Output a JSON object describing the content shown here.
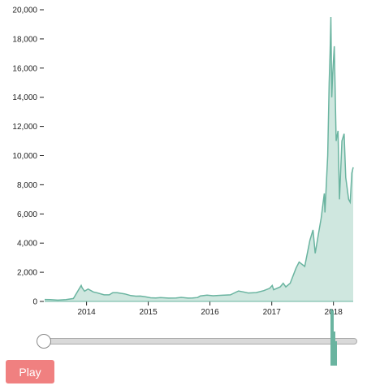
{
  "colors": {
    "series_stroke": "#6ab4a0",
    "series_fill": "#cfe7df",
    "play_button": "#f08080"
  },
  "controls": {
    "play_label": "Play",
    "slider_value": 0
  },
  "chart_data": {
    "type": "area",
    "title": "",
    "xlabel": "",
    "ylabel": "",
    "ylim": [
      0,
      20000
    ],
    "xlim": [
      "2013-04-28",
      "2018-04-28"
    ],
    "y_ticks": [
      0,
      2000,
      4000,
      6000,
      8000,
      10000,
      12000,
      14000,
      16000,
      18000,
      20000
    ],
    "y_tick_labels": [
      "0",
      "2,000",
      "4,000",
      "6,000",
      "8,000",
      "10,000",
      "12,000",
      "14,000",
      "16,000",
      "18,000",
      "20,000"
    ],
    "x_tick_labels": [
      "2014",
      "2015",
      "2016",
      "2017",
      "2018"
    ],
    "x_ticks": [
      "2014-01-01",
      "2015-01-01",
      "2016-01-01",
      "2017-01-01",
      "2018-01-01"
    ],
    "grid": false,
    "series": [
      {
        "x": [
          "2013-04-28",
          "2013-06-01",
          "2013-07-15",
          "2013-09-01",
          "2013-10-15",
          "2013-11-15",
          "2013-11-30",
          "2013-12-05",
          "2013-12-20",
          "2014-01-10",
          "2014-02-10",
          "2014-03-01",
          "2014-04-15",
          "2014-05-15",
          "2014-06-05",
          "2014-07-01",
          "2014-08-15",
          "2014-09-20",
          "2014-10-20",
          "2014-11-15",
          "2014-12-15",
          "2015-01-15",
          "2015-02-15",
          "2015-03-15",
          "2015-05-01",
          "2015-06-15",
          "2015-07-15",
          "2015-08-25",
          "2015-09-20",
          "2015-10-20",
          "2015-11-05",
          "2015-12-15",
          "2016-01-20",
          "2016-03-01",
          "2016-05-01",
          "2016-06-18",
          "2016-07-15",
          "2016-08-15",
          "2016-10-01",
          "2016-11-15",
          "2016-12-20",
          "2017-01-04",
          "2017-01-12",
          "2017-02-20",
          "2017-03-10",
          "2017-03-25",
          "2017-04-20",
          "2017-05-25",
          "2017-06-12",
          "2017-07-15",
          "2017-08-15",
          "2017-09-02",
          "2017-09-15",
          "2017-10-01",
          "2017-10-20",
          "2017-11-08",
          "2017-11-12",
          "2017-11-28",
          "2017-12-07",
          "2017-12-12",
          "2017-12-17",
          "2017-12-22",
          "2017-12-27",
          "2018-01-06",
          "2018-01-17",
          "2018-01-28",
          "2018-02-06",
          "2018-02-20",
          "2018-03-05",
          "2018-03-15",
          "2018-04-01",
          "2018-04-10",
          "2018-04-20",
          "2018-04-28"
        ],
        "values": [
          135,
          120,
          90,
          130,
          200,
          800,
          1100,
          950,
          700,
          850,
          650,
          600,
          450,
          450,
          600,
          600,
          520,
          400,
          360,
          370,
          320,
          250,
          240,
          270,
          230,
          240,
          280,
          230,
          235,
          270,
          380,
          430,
          390,
          420,
          450,
          720,
          660,
          580,
          610,
          740,
          900,
          1100,
          800,
          1000,
          1250,
          1000,
          1250,
          2300,
          2700,
          2400,
          4200,
          4900,
          3300,
          4400,
          5700,
          7400,
          6100,
          10000,
          15000,
          17000,
          19500,
          14000,
          15500,
          17500,
          11000,
          11700,
          7000,
          11000,
          11500,
          8500,
          7000,
          6800,
          8800,
          9200
        ]
      }
    ]
  }
}
